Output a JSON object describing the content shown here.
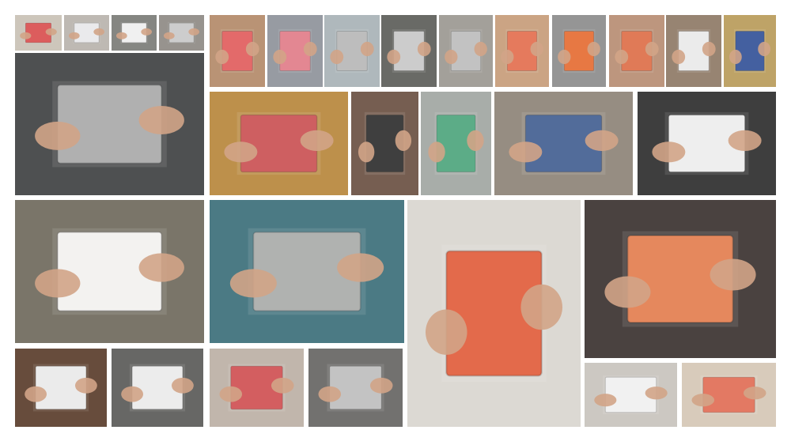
{
  "collage": {
    "description_tiles": [
      {
        "name": "photo-hands-notebook-1",
        "bg": "#c9c2b6",
        "obj": "#d94b4b"
      },
      {
        "name": "photo-hands-notebook-2",
        "bg": "#b9b3ad",
        "obj": "#e8e8ea"
      },
      {
        "name": "photo-hands-notebook-3",
        "bg": "#7b7c78",
        "obj": "#efefef"
      },
      {
        "name": "photo-hands-notebook-4",
        "bg": "#8f8a85",
        "obj": "#c8c8c8"
      },
      {
        "name": "photo-hands-notebook-5",
        "bg": "#b48a6a",
        "obj": "#e05a5a"
      },
      {
        "name": "photo-hands-notebook-6",
        "bg": "#8f939b",
        "obj": "#e07a86"
      },
      {
        "name": "photo-hands-notebook-7",
        "bg": "#a9b2b7",
        "obj": "#b6b6b6"
      },
      {
        "name": "photo-hands-notebook-8",
        "bg": "#5d5e5a",
        "obj": "#c7c7c7"
      },
      {
        "name": "photo-hands-notebook-9",
        "bg": "#9c9892",
        "obj": "#bcbcbc"
      },
      {
        "name": "photo-hands-notebook-10",
        "bg": "#c79d7a",
        "obj": "#e26b4b"
      },
      {
        "name": "photo-hands-notebook-11",
        "bg": "#8c8c8c",
        "obj": "#e5692e"
      },
      {
        "name": "photo-hands-notebook-12",
        "bg": "#b88e74",
        "obj": "#dd6b45"
      },
      {
        "name": "photo-hands-notebook-13",
        "bg": "#8f7a66",
        "obj": "#e9e9e9"
      },
      {
        "name": "photo-hands-notebook-14",
        "bg": "#b99c5b",
        "obj": "#2f4f96"
      },
      {
        "name": "photo-large-grey-notebook",
        "bg": "#3f4243",
        "obj": "#a7a8a7"
      },
      {
        "name": "photo-red-notebook-books",
        "bg": "#b8873c",
        "obj": "#c94d50"
      },
      {
        "name": "photo-striped-notebook",
        "bg": "#6b5143",
        "obj": "#2a2a2a"
      },
      {
        "name": "photo-green-notebook",
        "bg": "#a1a7a2",
        "obj": "#4aa37a"
      },
      {
        "name": "photo-blue-notebook-street",
        "bg": "#8e8478",
        "obj": "#3f5c8f"
      },
      {
        "name": "photo-white-notebook",
        "bg": "#2e2e2e",
        "obj": "#ededed"
      },
      {
        "name": "photo-paper-plants",
        "bg": "#6f6a5d",
        "obj": "#f2f1ef"
      },
      {
        "name": "photo-grey-notebook-studio",
        "bg": "#3c6f7a",
        "obj": "#a8aaa8"
      },
      {
        "name": "photo-bagged-orange-notebook",
        "bg": "#d9d6d0",
        "obj": "#e05a37"
      },
      {
        "name": "photo-orange-notebook-hands",
        "bg": "#3b3230",
        "obj": "#e27b4b"
      },
      {
        "name": "photo-small-1",
        "bg": "#5b3d2c",
        "obj": "#e9e9e9"
      },
      {
        "name": "photo-small-2",
        "bg": "#5b5b58",
        "obj": "#eaeaea"
      },
      {
        "name": "photo-small-3",
        "bg": "#bcb0a5",
        "obj": "#cf4c4f"
      },
      {
        "name": "photo-small-4",
        "bg": "#676563",
        "obj": "#bdbdbd"
      },
      {
        "name": "photo-small-5",
        "bg": "#c8c4bd",
        "obj": "#f0f0f0"
      },
      {
        "name": "photo-small-6",
        "bg": "#d5c7b6",
        "obj": "#e06a52"
      }
    ]
  }
}
